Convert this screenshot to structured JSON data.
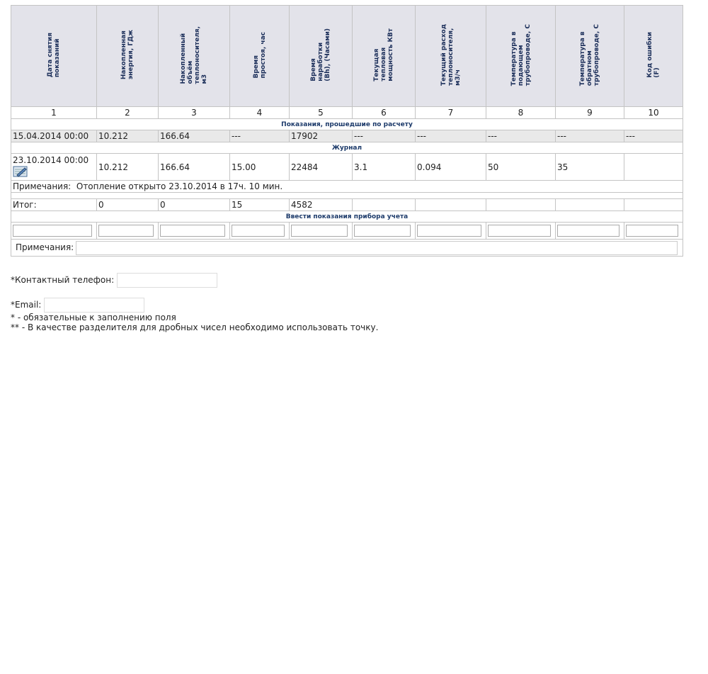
{
  "table": {
    "headers": [
      [
        "Дата снятия",
        "показаний"
      ],
      [
        "Накопленная",
        "энергия, ГДж"
      ],
      [
        "Накопленный",
        "объём",
        "теплоносителя,",
        "м3"
      ],
      [
        "Время",
        "простоя, час"
      ],
      [
        "Время",
        "наработки",
        "(Вh), (Часами)"
      ],
      [
        "Текущая",
        "тепловая",
        "мощность КВт"
      ],
      [
        "Текущий расход",
        "теплоносителя,",
        "м3/ч"
      ],
      [
        "Температура в",
        "подающем",
        "трубопроводе, С"
      ],
      [
        "Температура в",
        "обратном",
        "трубопроводе, С"
      ],
      [
        "Код ошибки",
        "(F)"
      ]
    ],
    "column_numbers": [
      "1",
      "2",
      "3",
      "4",
      "5",
      "6",
      "7",
      "8",
      "9",
      "10"
    ],
    "section_calc": "Показания, прошедшие по расчету",
    "calc_row": [
      "15.04.2014 00:00",
      "10.212",
      "166.64",
      "---",
      "17902",
      "---",
      "---",
      "---",
      "---",
      "---"
    ],
    "section_journal": "Журнал",
    "journal_row": [
      "23.10.2014 00:00",
      "10.212",
      "166.64",
      "15.00",
      "22484",
      "3.1",
      "0.094",
      "50",
      "35"
    ],
    "journal_note_label": "Примечания:",
    "journal_note": "Отопление открыто 23.10.2014 в 17ч. 10 мин.",
    "total_row": [
      "Итог:",
      "0",
      "0",
      "15",
      "4582"
    ],
    "section_input": "Ввести показания прибора учета",
    "notes_label": "Примечания:"
  },
  "form": {
    "phone_label": "*Контактный телефон:",
    "email_label": "*Email:"
  },
  "footnotes": [
    "* - обязательные к заполнению поля",
    "** - В качестве разделителя для дробных чисел необходимо использовать точку."
  ]
}
